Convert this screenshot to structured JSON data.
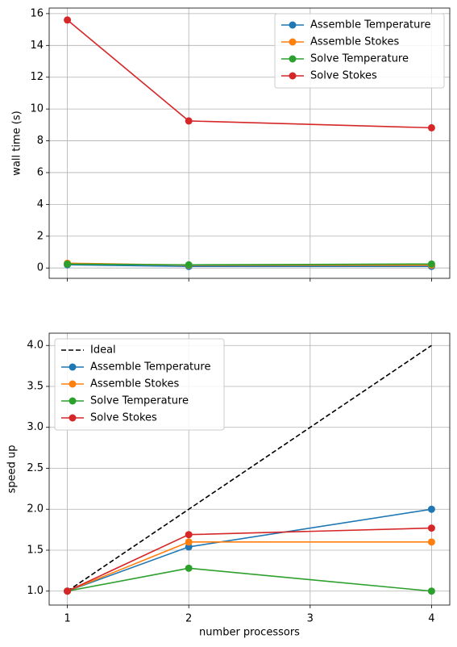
{
  "chart_data": [
    {
      "type": "line",
      "ylabel": "wall time (s)",
      "x": [
        1,
        2,
        4
      ],
      "ylim": [
        -0.65,
        16.35
      ],
      "yticks": [
        0,
        2,
        4,
        6,
        8,
        10,
        12,
        14,
        16
      ],
      "grid": true,
      "legend": "upper right",
      "series": [
        {
          "name": "Assemble Temperature",
          "color": "#1f77b4",
          "values": [
            0.2,
            0.1,
            0.1
          ]
        },
        {
          "name": "Assemble Stokes",
          "color": "#ff7f0e",
          "values": [
            0.3,
            0.18,
            0.18
          ]
        },
        {
          "name": "Solve Temperature",
          "color": "#2ca02c",
          "values": [
            0.25,
            0.2,
            0.25
          ]
        },
        {
          "name": "Solve Stokes",
          "color": "#d62728",
          "values": [
            15.6,
            9.25,
            8.82
          ]
        }
      ]
    },
    {
      "type": "line",
      "xlabel": "number processors",
      "ylabel": "speed up",
      "x": [
        1,
        2,
        4
      ],
      "xlim": [
        0.85,
        4.15
      ],
      "xticks": [
        1,
        2,
        3,
        4
      ],
      "ylim": [
        0.83,
        4.15
      ],
      "yticks": [
        {
          "value": 1,
          "label": "1.0"
        },
        1.5,
        {
          "value": 2,
          "label": "2.0"
        },
        2.5,
        {
          "value": 3,
          "label": "3.0"
        },
        3.5,
        {
          "value": 4,
          "label": "4.0"
        }
      ],
      "grid": true,
      "legend": "upper left",
      "series": [
        {
          "name": "Ideal",
          "color": "#000000",
          "linestyle": "dashed",
          "marker": false,
          "values": [
            1,
            2,
            4
          ]
        },
        {
          "name": "Assemble Temperature",
          "color": "#1f77b4",
          "values": [
            1,
            1.54,
            2.0
          ]
        },
        {
          "name": "Assemble Stokes",
          "color": "#ff7f0e",
          "values": [
            1,
            1.6,
            1.6
          ]
        },
        {
          "name": "Solve Temperature",
          "color": "#2ca02c",
          "values": [
            1,
            1.28,
            1.0
          ]
        },
        {
          "name": "Solve Stokes",
          "color": "#d62728",
          "values": [
            1,
            1.69,
            1.77
          ]
        }
      ]
    }
  ]
}
